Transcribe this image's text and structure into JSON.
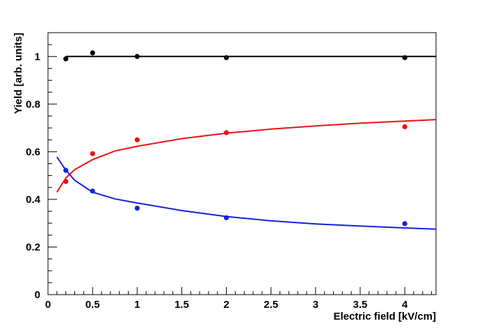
{
  "chart_data": {
    "type": "scatter",
    "title": "",
    "xlabel": "Electric field [kV/cm]",
    "ylabel": "Yield [arb. units]",
    "xlim": [
      0,
      4.35
    ],
    "ylim": [
      0,
      1.1
    ],
    "x_ticks": [
      0,
      0.5,
      1,
      1.5,
      2,
      2.5,
      3,
      3.5,
      4
    ],
    "x_tick_labels": [
      "0",
      "0.5",
      "1",
      "1.5",
      "2",
      "2.5",
      "3",
      "3.5",
      "4"
    ],
    "y_ticks": [
      0,
      0.2,
      0.4,
      0.6,
      0.8,
      1
    ],
    "y_tick_labels": [
      "0",
      "0.2",
      "0.4",
      "0.6",
      "0.8",
      "1"
    ],
    "grid": false,
    "legend": "none",
    "series": [
      {
        "color": "#000000",
        "x": [
          0.2,
          0.5,
          1,
          2,
          4
        ],
        "y": [
          0.99,
          1.015,
          1.0,
          0.995,
          0.995
        ],
        "fit": {
          "x": [
            0.2,
            4.35
          ],
          "y": [
            1.0,
            1.0
          ]
        }
      },
      {
        "color": "#ee1111",
        "x": [
          0.2,
          0.5,
          1,
          2,
          4
        ],
        "y": [
          0.475,
          0.592,
          0.65,
          0.68,
          0.705
        ],
        "fit": {
          "x": [
            0.1,
            0.2,
            0.3,
            0.5,
            0.75,
            1,
            1.5,
            2,
            2.5,
            3,
            3.5,
            4,
            4.35
          ],
          "y": [
            0.43,
            0.49,
            0.525,
            0.567,
            0.603,
            0.623,
            0.655,
            0.678,
            0.695,
            0.708,
            0.72,
            0.729,
            0.735
          ]
        }
      },
      {
        "color": "#1122dd",
        "x": [
          0.2,
          0.5,
          1,
          2,
          4
        ],
        "y": [
          0.522,
          0.435,
          0.363,
          0.323,
          0.298
        ],
        "fit": {
          "x": [
            0.1,
            0.2,
            0.3,
            0.5,
            0.75,
            1,
            1.5,
            2,
            2.5,
            3,
            3.5,
            4,
            4.35
          ],
          "y": [
            0.578,
            0.523,
            0.48,
            0.43,
            0.402,
            0.385,
            0.353,
            0.328,
            0.31,
            0.297,
            0.288,
            0.28,
            0.275
          ]
        }
      }
    ]
  }
}
